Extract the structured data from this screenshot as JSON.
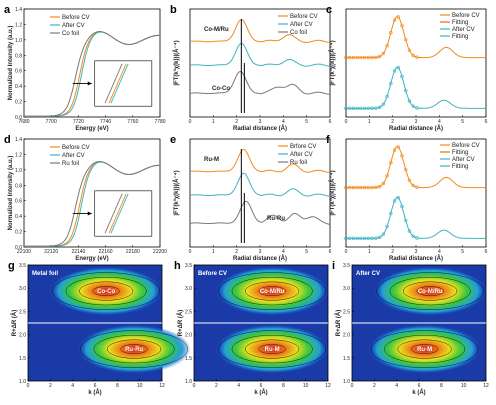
{
  "colors": {
    "before": "#f28a1f",
    "after": "#3fb3c0",
    "ref": "#7a7a7a",
    "fitting": "#f26a00"
  },
  "panels": [
    {
      "id": "a",
      "label": "a",
      "type": "xanes",
      "xlabel": "Energy (eV)",
      "ylabel": "Normalized Intensity (a.u.)",
      "xticks": [
        "7680",
        "7700",
        "7720",
        "7740",
        "7760",
        "7780"
      ],
      "yticks": [
        "0.0",
        "0.2",
        "0.4",
        "0.6",
        "0.8",
        "1.0",
        "1.2",
        "1.4"
      ],
      "legend": [
        "Before CV",
        "After CV",
        "Co foil"
      ]
    },
    {
      "id": "b",
      "label": "b",
      "type": "ft",
      "xlabel": "Radial distance (Å)",
      "ylabel": "|FT(k³χ(k))|(Å⁻⁴)",
      "xticks": [
        "0",
        "1",
        "2",
        "3",
        "4",
        "5",
        "6"
      ],
      "legend": [
        "Before CV",
        "After CV",
        "Co foil"
      ],
      "annotations": [
        "Co-M/Ru",
        "Co-Co"
      ]
    },
    {
      "id": "c",
      "label": "c",
      "type": "fit",
      "xlabel": "Radial distance (Å)",
      "ylabel": "|FT(k³χ(k))|(Å⁻⁴)",
      "xticks": [
        "0",
        "1",
        "2",
        "3",
        "4",
        "5",
        "6"
      ],
      "legend": [
        "Before CV",
        "Fitting",
        "After CV",
        "Fitting"
      ]
    },
    {
      "id": "d",
      "label": "d",
      "type": "xanes",
      "xlabel": "Energy (eV)",
      "ylabel": "Normalized Intensity (a.u.)",
      "xticks": [
        "22100",
        "22120",
        "22140",
        "22160",
        "22180",
        "22200"
      ],
      "yticks": [
        "0.0",
        "0.2",
        "0.4",
        "0.6",
        "0.8",
        "1.0",
        "1.2",
        "1.4"
      ],
      "legend": [
        "Before CV",
        "After CV",
        "Ru foil"
      ]
    },
    {
      "id": "e",
      "label": "e",
      "type": "ft",
      "xlabel": "Radial distance (Å)",
      "ylabel": "|FT(k³χ(k))|(Å⁻⁴)",
      "xticks": [
        "0",
        "1",
        "2",
        "3",
        "4",
        "5",
        "6"
      ],
      "legend": [
        "Brfore CV",
        "After CV",
        "Ru foil"
      ],
      "annotations": [
        "Ru-M",
        "Ru-Ru"
      ]
    },
    {
      "id": "f",
      "label": "f",
      "type": "fit",
      "xlabel": "Radial distance (Å)",
      "ylabel": "|FT(k³χ(k))|(Å⁻⁴)",
      "xticks": [
        "0",
        "1",
        "2",
        "3",
        "4",
        "5",
        "6"
      ],
      "legend": [
        "Before CV",
        "Fitting",
        "After CV",
        "Fitting"
      ]
    },
    {
      "id": "g",
      "label": "g",
      "type": "wavelet",
      "title": "Metal foil",
      "xlabel": "k (Å)",
      "ylabel": "R+ΔR (Å)",
      "xticks": [
        "0",
        "2",
        "4",
        "6",
        "8",
        "10",
        "12"
      ],
      "yticks": [
        "1.0",
        "1.5",
        "2.0",
        "2.5",
        "3.0",
        "3.5"
      ],
      "spots": [
        "Co-Co",
        "Ru-Ru"
      ]
    },
    {
      "id": "h",
      "label": "h",
      "type": "wavelet",
      "title": "Before CV",
      "xlabel": "k (Å)",
      "ylabel": "R+ΔR (Å)",
      "xticks": [
        "0",
        "2",
        "4",
        "6",
        "8",
        "10",
        "12"
      ],
      "yticks": [
        "1.0",
        "1.5",
        "2.0",
        "2.5",
        "3.0",
        "3.5"
      ],
      "spots": [
        "Co-M/Ru",
        "Ru-M"
      ]
    },
    {
      "id": "i",
      "label": "i",
      "type": "wavelet",
      "title": "After CV",
      "xlabel": "k (Å)",
      "ylabel": "R+ΔR (Å)",
      "xticks": [
        "0",
        "2",
        "4",
        "6",
        "8",
        "10",
        "12"
      ],
      "yticks": [
        "1.0",
        "1.5",
        "2.0",
        "2.5",
        "3.0",
        "3.5"
      ],
      "spots": [
        "Co-M/Ru",
        "Ru-M"
      ]
    }
  ],
  "chart_data": [
    {
      "type": "line",
      "panel": "a",
      "x_range": [
        7680,
        7780
      ],
      "y_range": [
        0,
        1.4
      ],
      "series": [
        {
          "name": "Before CV",
          "x": [
            7680,
            7700,
            7710,
            7715,
            7720,
            7725,
            7728,
            7735,
            7745,
            7755,
            7765,
            7780
          ],
          "y": [
            0.02,
            0.03,
            0.08,
            0.2,
            0.55,
            0.95,
            1.12,
            1.1,
            0.98,
            1.05,
            1.0,
            0.98
          ]
        },
        {
          "name": "After CV",
          "x": [
            7680,
            7700,
            7710,
            7715,
            7720,
            7725,
            7728,
            7735,
            7745,
            7755,
            7765,
            7780
          ],
          "y": [
            0.02,
            0.03,
            0.09,
            0.23,
            0.6,
            1.0,
            1.16,
            1.12,
            0.99,
            1.06,
            1.01,
            0.99
          ]
        },
        {
          "name": "Co foil",
          "x": [
            7680,
            7700,
            7708,
            7712,
            7718,
            7724,
            7730,
            7738,
            7748,
            7758,
            7768,
            7780
          ],
          "y": [
            0.02,
            0.05,
            0.2,
            0.45,
            0.7,
            0.88,
            1.08,
            1.1,
            0.98,
            1.04,
            1.0,
            0.99
          ]
        }
      ]
    },
    {
      "type": "line",
      "panel": "b",
      "x_range": [
        0,
        6
      ],
      "series": [
        {
          "name": "Before CV",
          "peaks": [
            [
              2.2,
              1.0
            ],
            [
              4.2,
              0.3
            ]
          ]
        },
        {
          "name": "After CV",
          "peaks": [
            [
              2.2,
              1.0
            ],
            [
              4.2,
              0.25
            ]
          ]
        },
        {
          "name": "Co foil",
          "peaks": [
            [
              2.15,
              1.0
            ],
            [
              3.8,
              0.3
            ],
            [
              4.4,
              0.35
            ]
          ]
        }
      ]
    },
    {
      "type": "line",
      "panel": "c",
      "x_range": [
        0,
        6
      ],
      "series": [
        {
          "name": "Before CV",
          "peaks": [
            [
              2.2,
              1.0
            ],
            [
              4.3,
              0.25
            ]
          ]
        },
        {
          "name": "Fitting"
        },
        {
          "name": "After CV",
          "peaks": [
            [
              2.2,
              1.0
            ],
            [
              4.2,
              0.2
            ]
          ]
        },
        {
          "name": "Fitting"
        }
      ]
    },
    {
      "type": "line",
      "panel": "d",
      "x_range": [
        22100,
        22200
      ],
      "y_range": [
        0,
        1.4
      ],
      "series": [
        {
          "name": "Before CV"
        },
        {
          "name": "After CV"
        },
        {
          "name": "Ru foil"
        }
      ]
    },
    {
      "type": "line",
      "panel": "e",
      "x_range": [
        0,
        6
      ],
      "series": [
        {
          "name": "Brfore CV",
          "peaks": [
            [
              2.3,
              1.0
            ],
            [
              4.4,
              0.3
            ]
          ]
        },
        {
          "name": "After CV",
          "peaks": [
            [
              2.3,
              1.0
            ],
            [
              4.4,
              0.25
            ]
          ]
        },
        {
          "name": "Ru foil",
          "peaks": [
            [
              2.4,
              1.0
            ],
            [
              3.6,
              0.35
            ],
            [
              4.5,
              0.4
            ],
            [
              5.2,
              0.3
            ]
          ]
        }
      ]
    },
    {
      "type": "line",
      "panel": "f",
      "x_range": [
        0,
        6
      ],
      "series": [
        {
          "name": "Before CV",
          "peaks": [
            [
              2.2,
              1.0
            ],
            [
              4.3,
              0.25
            ]
          ]
        },
        {
          "name": "Fitting"
        },
        {
          "name": "After CV",
          "peaks": [
            [
              2.2,
              1.0
            ],
            [
              4.2,
              0.2
            ]
          ]
        },
        {
          "name": "Fitting"
        }
      ]
    },
    {
      "type": "heatmap",
      "panel": "g",
      "x_range": [
        0,
        12
      ],
      "y_range": [
        1.0,
        3.5
      ],
      "spots": [
        {
          "label": "Co-Co",
          "k": 7,
          "R": 2.1
        },
        {
          "label": "Ru-Ru",
          "k": 9.5,
          "R": 2.4
        }
      ]
    },
    {
      "type": "heatmap",
      "panel": "h",
      "x_range": [
        0,
        12
      ],
      "y_range": [
        1.0,
        3.5
      ],
      "spots": [
        {
          "label": "Co-M/Ru",
          "k": 7,
          "R": 2.1
        },
        {
          "label": "Ru-M",
          "k": 7,
          "R": 2.1
        }
      ]
    },
    {
      "type": "heatmap",
      "panel": "i",
      "x_range": [
        0,
        12
      ],
      "y_range": [
        1.0,
        3.5
      ],
      "spots": [
        {
          "label": "Co-M/Ru",
          "k": 7,
          "R": 2.1
        },
        {
          "label": "Ru-M",
          "k": 6.5,
          "R": 2.1
        }
      ]
    }
  ]
}
